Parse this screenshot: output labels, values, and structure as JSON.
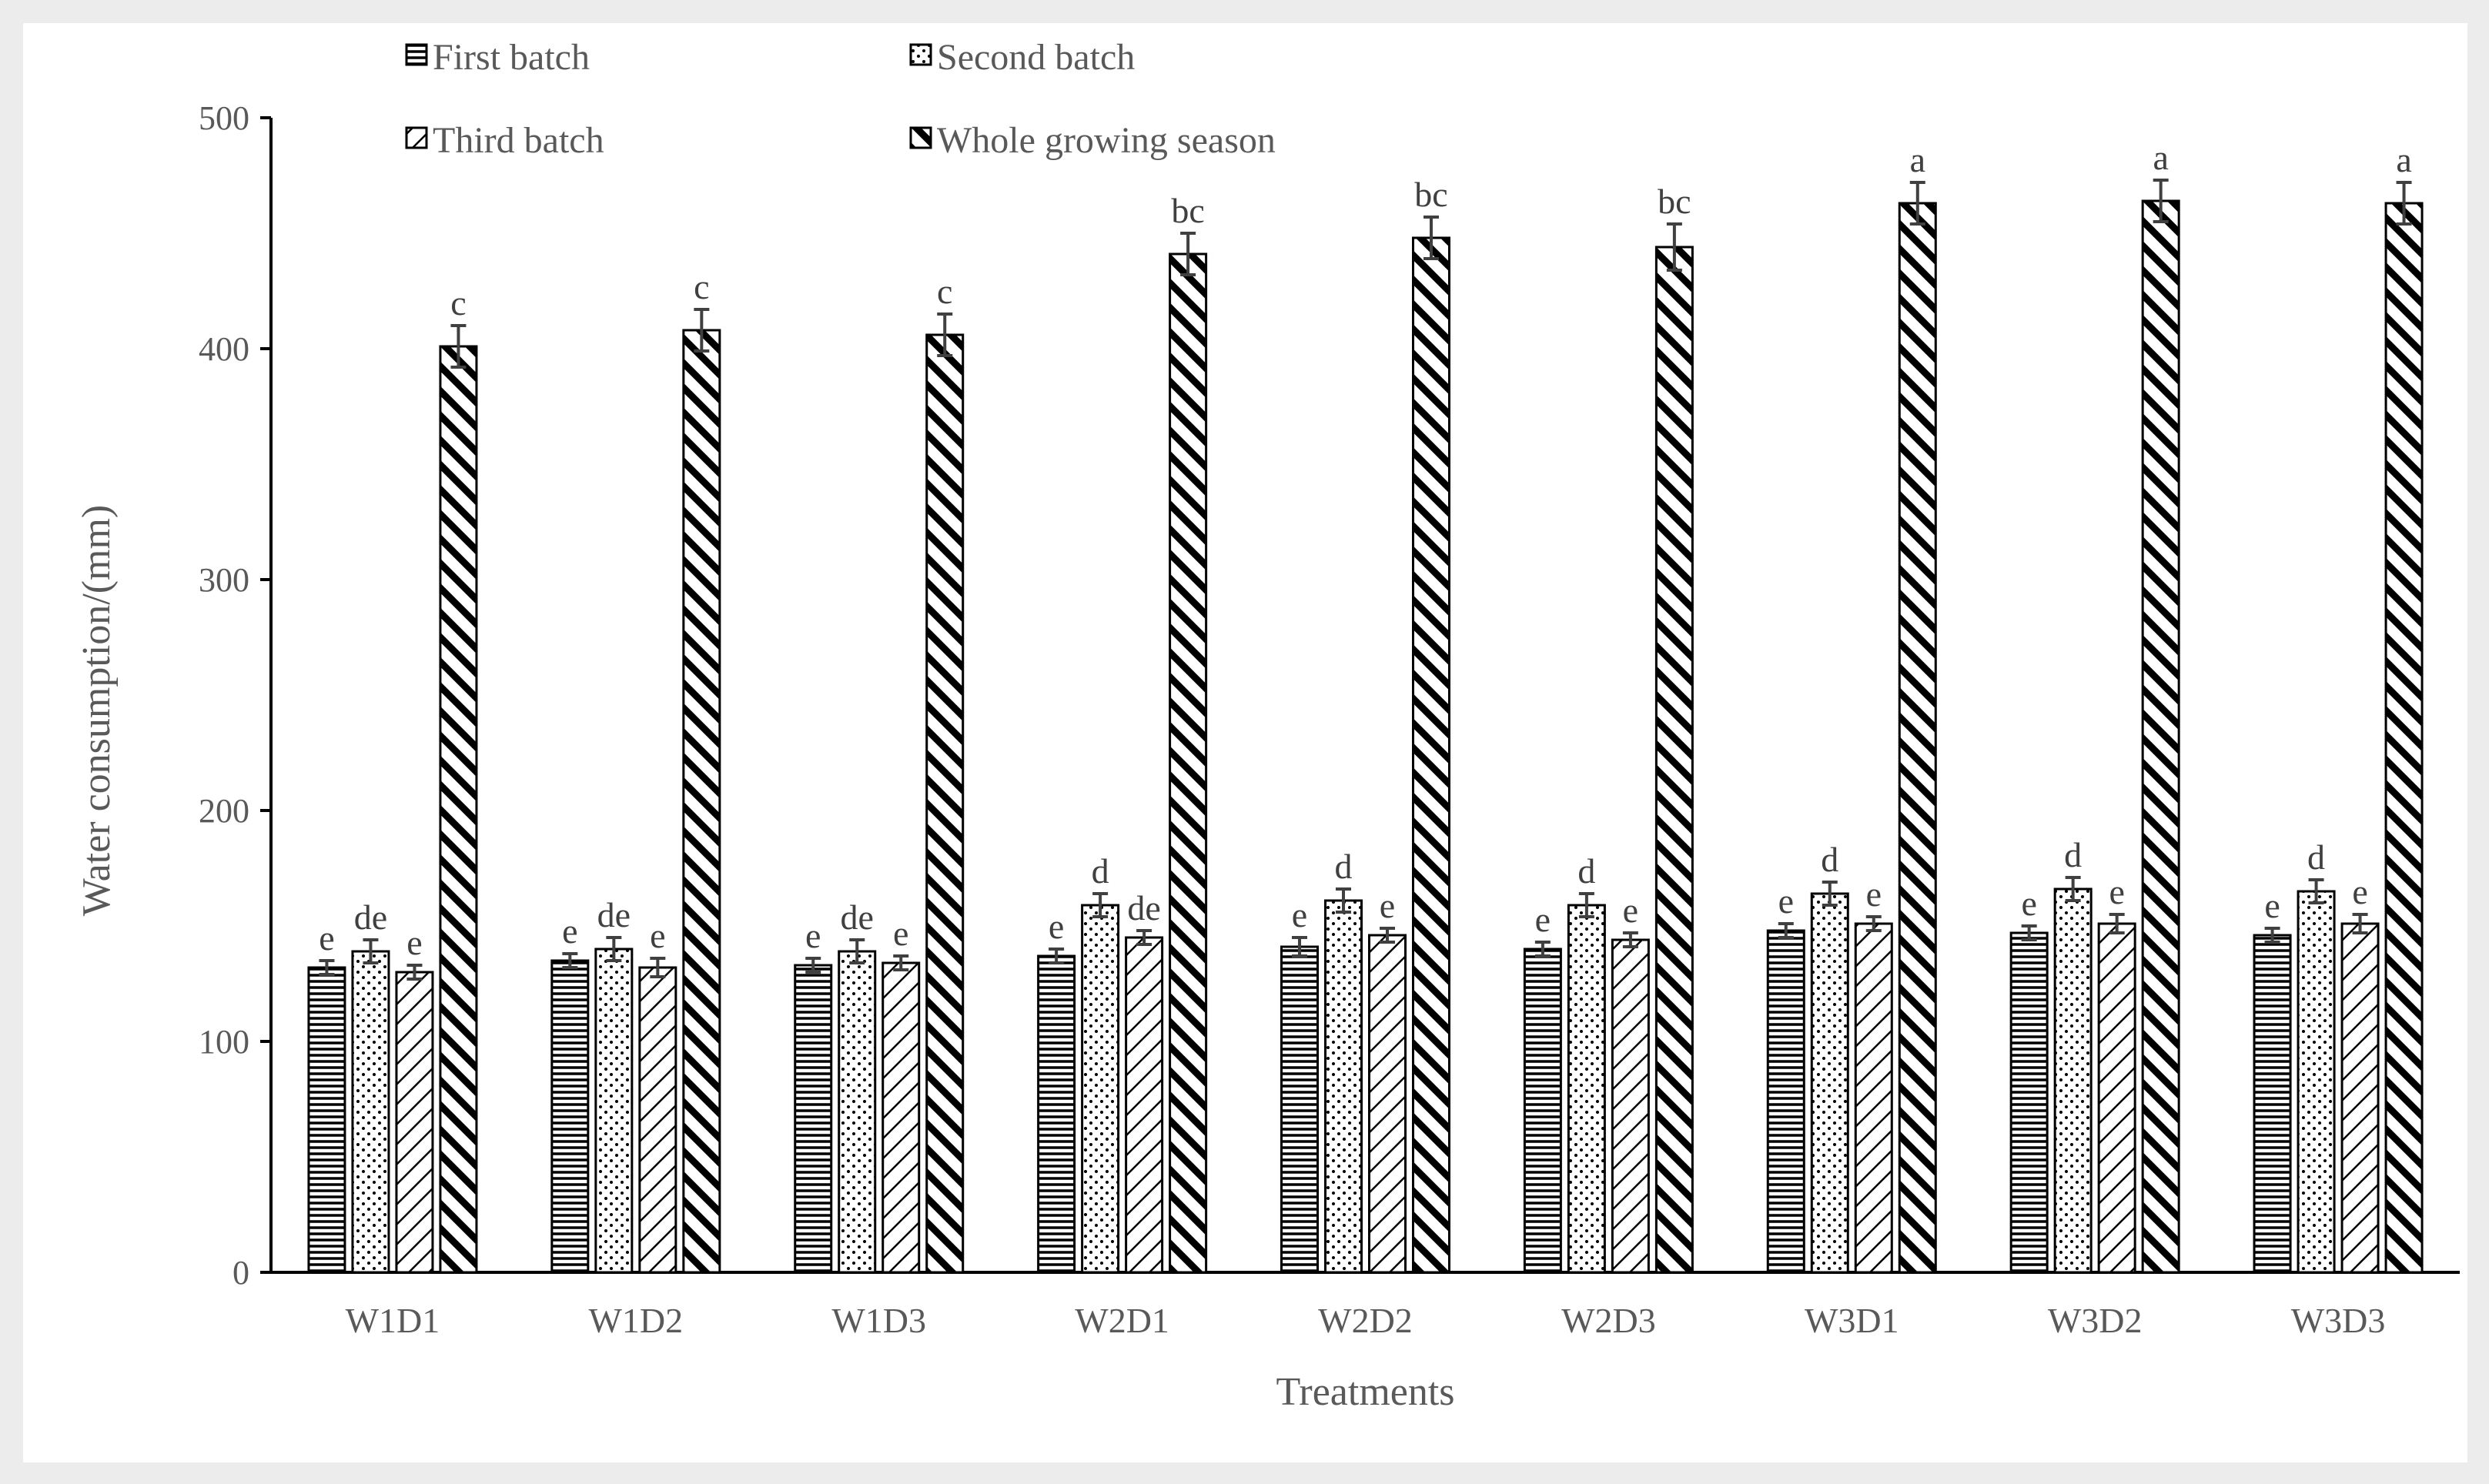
{
  "chart_data": {
    "type": "bar",
    "title": "",
    "xlabel": "Treatments",
    "ylabel": "Water consumption/(mm)",
    "ylim": [
      0,
      500
    ],
    "yticks": [
      0,
      100,
      200,
      300,
      400,
      500
    ],
    "grid": false,
    "legend_position": "top-left",
    "categories": [
      "W1D1",
      "W1D2",
      "W1D3",
      "W2D1",
      "W2D2",
      "W2D3",
      "W3D1",
      "W3D2",
      "W3D3"
    ],
    "series": [
      {
        "name": "First batch",
        "pattern": "horizontal-lines",
        "values": [
          132,
          135,
          133,
          137,
          141,
          140,
          148,
          147,
          146
        ],
        "errors": [
          3,
          3,
          3,
          3,
          4,
          3,
          3,
          3,
          3
        ],
        "letters": [
          "e",
          "e",
          "e",
          "e",
          "e",
          "e",
          "e",
          "e",
          "e"
        ]
      },
      {
        "name": "Second batch",
        "pattern": "dots",
        "values": [
          139,
          140,
          139,
          159,
          161,
          159,
          164,
          166,
          165
        ],
        "errors": [
          5,
          5,
          5,
          5,
          5,
          5,
          5,
          5,
          5
        ],
        "letters": [
          "de",
          "de",
          "de",
          "d",
          "d",
          "d",
          "d",
          "d",
          "d"
        ]
      },
      {
        "name": "Third batch",
        "pattern": "diagonal-lines",
        "values": [
          130,
          132,
          134,
          145,
          146,
          144,
          151,
          151,
          151
        ],
        "errors": [
          3,
          4,
          3,
          3,
          3,
          3,
          3,
          4,
          4
        ],
        "letters": [
          "e",
          "e",
          "e",
          "de",
          "e",
          "e",
          "e",
          "e",
          "e"
        ]
      },
      {
        "name": "Whole growing season",
        "pattern": "wide-downward-diagonal",
        "values": [
          401,
          408,
          406,
          441,
          448,
          444,
          463,
          464,
          463
        ],
        "errors": [
          9,
          9,
          9,
          9,
          9,
          10,
          9,
          9,
          9
        ],
        "letters": [
          "c",
          "c",
          "c",
          "bc",
          "bc",
          "bc",
          "a",
          "a",
          "a"
        ]
      }
    ]
  }
}
